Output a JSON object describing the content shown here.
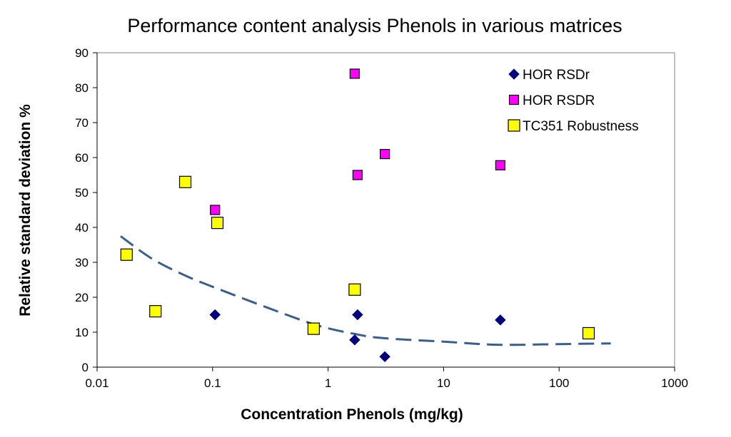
{
  "chart_data": {
    "type": "scatter",
    "title": "Performance content analysis Phenols in various matrices",
    "xlabel": "Concentration Phenols (mg/kg)",
    "ylabel": "Relative standard deviation %",
    "xscale": "log",
    "xlim": [
      0.01,
      1000
    ],
    "ylim": [
      0,
      90
    ],
    "x_ticks": [
      0.01,
      0.1,
      1,
      10,
      100,
      1000
    ],
    "x_tick_labels": [
      "0.01",
      "0.1",
      "1",
      "10",
      "100",
      "1000"
    ],
    "y_ticks": [
      0,
      10,
      20,
      30,
      40,
      50,
      60,
      70,
      80,
      90
    ],
    "y_tick_labels": [
      "0",
      "10",
      "20",
      "30",
      "40",
      "50",
      "60",
      "70",
      "80",
      "90"
    ],
    "grid": false,
    "legend_position": "top-right",
    "series": [
      {
        "name": "HOR RSDr",
        "marker": "diamond",
        "color": "#000080",
        "points": [
          [
            0.105,
            15
          ],
          [
            1.7,
            7.8
          ],
          [
            1.8,
            15
          ],
          [
            3.1,
            3
          ],
          [
            31,
            13.5
          ]
        ]
      },
      {
        "name": "HOR RSDR",
        "marker": "square",
        "color": "#ff00ff",
        "points": [
          [
            0.105,
            45
          ],
          [
            1.7,
            84
          ],
          [
            1.8,
            55
          ],
          [
            3.1,
            61
          ],
          [
            31,
            57.8
          ]
        ]
      },
      {
        "name": "TC351 Robustness",
        "marker": "square",
        "color": "#ffff00",
        "points": [
          [
            0.018,
            32.2
          ],
          [
            0.032,
            16
          ],
          [
            0.058,
            53
          ],
          [
            0.11,
            41.3
          ],
          [
            0.75,
            11
          ],
          [
            1.7,
            22.2
          ],
          [
            180,
            9.7
          ]
        ]
      }
    ],
    "trendline": {
      "style": "dashed",
      "color": "#3a5f8f",
      "points": [
        [
          0.016,
          37.5
        ],
        [
          0.03,
          31
        ],
        [
          0.06,
          26
        ],
        [
          0.11,
          22.5
        ],
        [
          0.3,
          17
        ],
        [
          0.8,
          12
        ],
        [
          1.7,
          9.5
        ],
        [
          3,
          8.3
        ],
        [
          10,
          7.3
        ],
        [
          30,
          6.4
        ],
        [
          100,
          6.6
        ],
        [
          280,
          6.8
        ]
      ]
    }
  }
}
